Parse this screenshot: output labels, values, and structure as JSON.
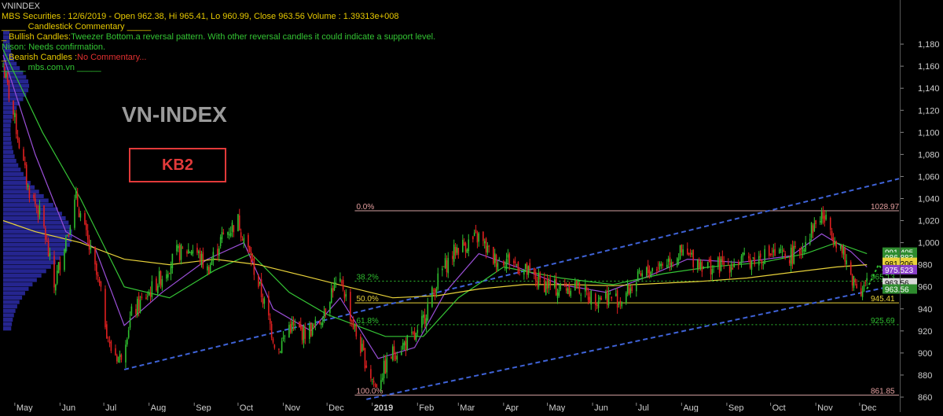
{
  "header": {
    "symbol": "VNINDEX",
    "ohlc_line": "MBS Securities :  12/6/2019 - Open 962.38, Hi 965.41, Lo 960.99, Close 963.56 Volume : 1.39313e+008",
    "commentary_title": "_____ Candlestick Commentary _____",
    "bullish_label": "_ Bullish Candles:",
    "bullish_text": "Tweezer Bottom.a reversal pattern. With other reversal candles it could indicate a support level.",
    "nison_text": "Nison: Needs confirmation.",
    "bearish_label": "_ Bearish Candles :",
    "bearish_text": "No Commentary...",
    "site_text": "_____ mbs.com.vn _____"
  },
  "overlay": {
    "index_name": "VN-INDEX",
    "badge": "KB2"
  },
  "colors": {
    "background": "#000000",
    "axis_text": "#cfcfcf",
    "bull": "#2fbf2f",
    "bear": "#e02020",
    "ma_green": "#35c435",
    "ma_purple": "#9b4fd8",
    "ma_yellow": "#e8d23a",
    "channel": "#3f63d8",
    "fib_line": "#d2a0a0",
    "header_yellow": "#e6c800",
    "header_green": "#33c433",
    "header_red": "#e03030",
    "volume_profile": "#2c2ca8"
  },
  "chart_data": {
    "type": "candlestick",
    "y_range": [
      855,
      1210
    ],
    "y_ticks": [
      860,
      880,
      900,
      920,
      940,
      960,
      980,
      1000,
      1020,
      1040,
      1060,
      1080,
      1100,
      1120,
      1140,
      1160,
      1180
    ],
    "y_tick_labels": [
      "860",
      "880",
      "900",
      "920",
      "940",
      "960",
      "980",
      "1,000",
      "1,020",
      "1,040",
      "1,060",
      "1,080",
      "1,100",
      "1,120",
      "1,140",
      "1,160",
      "1,180"
    ],
    "x_start": "2018-04-23",
    "x_end": "2019-12-28",
    "months": [
      {
        "label": "May",
        "date": "2018-05-01"
      },
      {
        "label": "Jun",
        "date": "2018-06-01"
      },
      {
        "label": "Jul",
        "date": "2018-07-01"
      },
      {
        "label": "Aug",
        "date": "2018-08-01"
      },
      {
        "label": "Sep",
        "date": "2018-09-01"
      },
      {
        "label": "Oct",
        "date": "2018-10-01"
      },
      {
        "label": "Nov",
        "date": "2018-11-01"
      },
      {
        "label": "Dec",
        "date": "2018-12-01"
      },
      {
        "label": "2019",
        "date": "2019-01-01"
      },
      {
        "label": "Feb",
        "date": "2019-02-01"
      },
      {
        "label": "Mar",
        "date": "2019-03-01"
      },
      {
        "label": "Apr",
        "date": "2019-04-01"
      },
      {
        "label": "May",
        "date": "2019-05-01"
      },
      {
        "label": "Jun",
        "date": "2019-06-01"
      },
      {
        "label": "Jul",
        "date": "2019-07-01"
      },
      {
        "label": "Aug",
        "date": "2019-08-01"
      },
      {
        "label": "Sep",
        "date": "2019-09-01"
      },
      {
        "label": "Oct",
        "date": "2019-10-01"
      },
      {
        "label": "Nov",
        "date": "2019-11-01"
      },
      {
        "label": "Dec",
        "date": "2019-12-01"
      }
    ],
    "close_path": [
      [
        "2018-04-23",
        1160
      ],
      [
        "2018-05-01",
        1110
      ],
      [
        "2018-05-10",
        1050
      ],
      [
        "2018-05-20",
        1020
      ],
      [
        "2018-05-28",
        960
      ],
      [
        "2018-06-04",
        1000
      ],
      [
        "2018-06-12",
        1040
      ],
      [
        "2018-06-20",
        1000
      ],
      [
        "2018-06-28",
        960
      ],
      [
        "2018-07-05",
        905
      ],
      [
        "2018-07-12",
        895
      ],
      [
        "2018-07-20",
        935
      ],
      [
        "2018-08-01",
        955
      ],
      [
        "2018-08-10",
        970
      ],
      [
        "2018-08-20",
        990
      ],
      [
        "2018-09-01",
        995
      ],
      [
        "2018-09-10",
        975
      ],
      [
        "2018-09-20",
        1005
      ],
      [
        "2018-10-01",
        1020
      ],
      [
        "2018-10-10",
        985
      ],
      [
        "2018-10-20",
        940
      ],
      [
        "2018-10-28",
        900
      ],
      [
        "2018-11-05",
        925
      ],
      [
        "2018-11-15",
        918
      ],
      [
        "2018-11-25",
        925
      ],
      [
        "2018-12-05",
        960
      ],
      [
        "2018-12-12",
        960
      ],
      [
        "2018-12-20",
        920
      ],
      [
        "2018-12-28",
        890
      ],
      [
        "2019-01-03",
        870
      ],
      [
        "2019-01-15",
        900
      ],
      [
        "2019-01-25",
        910
      ],
      [
        "2019-02-01",
        915
      ],
      [
        "2019-02-10",
        950
      ],
      [
        "2019-02-18",
        975
      ],
      [
        "2019-02-28",
        995
      ],
      [
        "2019-03-08",
        1000
      ],
      [
        "2019-03-15",
        1005
      ],
      [
        "2019-03-25",
        985
      ],
      [
        "2019-04-05",
        985
      ],
      [
        "2019-04-15",
        975
      ],
      [
        "2019-04-25",
        965
      ],
      [
        "2019-05-08",
        958
      ],
      [
        "2019-05-20",
        962
      ],
      [
        "2019-06-01",
        950
      ],
      [
        "2019-06-10",
        952
      ],
      [
        "2019-06-20",
        948
      ],
      [
        "2019-07-01",
        965
      ],
      [
        "2019-07-10",
        975
      ],
      [
        "2019-07-20",
        982
      ],
      [
        "2019-07-31",
        990
      ],
      [
        "2019-08-10",
        985
      ],
      [
        "2019-08-20",
        978
      ],
      [
        "2019-09-01",
        980
      ],
      [
        "2019-09-10",
        983
      ],
      [
        "2019-09-20",
        985
      ],
      [
        "2019-10-01",
        990
      ],
      [
        "2019-10-10",
        987
      ],
      [
        "2019-10-20",
        990
      ],
      [
        "2019-10-28",
        1010
      ],
      [
        "2019-11-05",
        1025
      ],
      [
        "2019-11-12",
        1010
      ],
      [
        "2019-11-18",
        995
      ],
      [
        "2019-11-25",
        970
      ],
      [
        "2019-12-02",
        958
      ],
      [
        "2019-12-06",
        963.56
      ]
    ],
    "ma_lines": [
      {
        "name": "ma_short",
        "color_key": "ma_purple",
        "points": [
          [
            "2018-04-23",
            1170
          ],
          [
            "2018-05-15",
            1080
          ],
          [
            "2018-06-05",
            1010
          ],
          [
            "2018-06-25",
            995
          ],
          [
            "2018-07-15",
            925
          ],
          [
            "2018-08-10",
            955
          ],
          [
            "2018-09-10",
            985
          ],
          [
            "2018-10-05",
            1000
          ],
          [
            "2018-10-25",
            940
          ],
          [
            "2018-11-20",
            920
          ],
          [
            "2018-12-10",
            950
          ],
          [
            "2019-01-05",
            895
          ],
          [
            "2019-01-30",
            905
          ],
          [
            "2019-02-20",
            955
          ],
          [
            "2019-03-15",
            990
          ],
          [
            "2019-04-10",
            978
          ],
          [
            "2019-05-10",
            962
          ],
          [
            "2019-06-10",
            955
          ],
          [
            "2019-07-10",
            970
          ],
          [
            "2019-08-05",
            985
          ],
          [
            "2019-09-10",
            982
          ],
          [
            "2019-10-15",
            988
          ],
          [
            "2019-11-05",
            1008
          ],
          [
            "2019-11-25",
            992
          ],
          [
            "2019-12-06",
            978
          ]
        ]
      },
      {
        "name": "ma_mid",
        "color_key": "ma_green",
        "points": [
          [
            "2018-04-23",
            1175
          ],
          [
            "2018-05-20",
            1100
          ],
          [
            "2018-06-15",
            1040
          ],
          [
            "2018-07-15",
            960
          ],
          [
            "2018-08-15",
            950
          ],
          [
            "2018-09-15",
            975
          ],
          [
            "2018-10-10",
            990
          ],
          [
            "2018-11-05",
            955
          ],
          [
            "2018-12-01",
            935
          ],
          [
            "2019-01-10",
            915
          ],
          [
            "2019-02-05",
            915
          ],
          [
            "2019-03-01",
            950
          ],
          [
            "2019-04-01",
            978
          ],
          [
            "2019-05-10",
            968
          ],
          [
            "2019-06-15",
            962
          ],
          [
            "2019-07-20",
            972
          ],
          [
            "2019-08-20",
            978
          ],
          [
            "2019-09-25",
            982
          ],
          [
            "2019-10-25",
            990
          ],
          [
            "2019-11-15",
            1000
          ],
          [
            "2019-12-06",
            990
          ]
        ]
      },
      {
        "name": "ma_slow",
        "color_key": "ma_yellow",
        "points": [
          [
            "2018-04-23",
            1020
          ],
          [
            "2018-05-15",
            1010
          ],
          [
            "2018-06-15",
            1000
          ],
          [
            "2018-07-15",
            985
          ],
          [
            "2018-08-15",
            980
          ],
          [
            "2018-09-15",
            985
          ],
          [
            "2018-10-15",
            980
          ],
          [
            "2018-11-15",
            970
          ],
          [
            "2018-12-15",
            960
          ],
          [
            "2019-01-15",
            950
          ],
          [
            "2019-02-15",
            952
          ],
          [
            "2019-03-15",
            958
          ],
          [
            "2019-04-15",
            962
          ],
          [
            "2019-05-15",
            962
          ],
          [
            "2019-06-15",
            961
          ],
          [
            "2019-07-15",
            963
          ],
          [
            "2019-08-15",
            965
          ],
          [
            "2019-09-15",
            968
          ],
          [
            "2019-10-15",
            973
          ],
          [
            "2019-11-15",
            978
          ],
          [
            "2019-12-06",
            980
          ]
        ]
      }
    ],
    "channel": {
      "upper": [
        [
          "2018-07-15",
          885
        ],
        [
          "2019-12-28",
          1058
        ]
      ],
      "lower": [
        [
          "2018-12-28",
          858
        ],
        [
          "2019-12-28",
          962
        ]
      ]
    },
    "fibonacci": [
      {
        "level": "0.0%",
        "value": 1028.97,
        "label": "1028.97"
      },
      {
        "level": "38.2%",
        "value": 965.13,
        "label": "965.13"
      },
      {
        "level": "50.0%",
        "value": 945.41,
        "label": "945.41"
      },
      {
        "level": "61.8%",
        "value": 925.69,
        "label": "925.69"
      },
      {
        "level": "100.0%",
        "value": 861.85,
        "label": "861.85"
      }
    ],
    "fib_start": "2018-12-20",
    "price_tags": [
      {
        "value": 991.405,
        "label": "991.405",
        "bg": "#2e8b2e",
        "fg": "#ffffff"
      },
      {
        "value": 986.883,
        "label": "986.883",
        "bg": "#2e8b2e",
        "fg": "#ffffff"
      },
      {
        "value": 982.185,
        "label": "982.185",
        "bg": "#e8d23a",
        "fg": "#000000"
      },
      {
        "value": 981.206,
        "label": "981.206",
        "bg": "#e8d23a",
        "fg": "#000000"
      },
      {
        "value": 975.523,
        "label": "975.523",
        "bg": "#8a3fc8",
        "fg": "#ffffff"
      },
      {
        "value": 963.56,
        "label": "963.56",
        "bg": "#d8d8d8",
        "fg": "#000000"
      },
      {
        "value": 958,
        "label": "963.56",
        "bg": "#2e8b2e",
        "fg": "#ffffff"
      }
    ],
    "forecast_arrow": [
      [
        "2019-12-06",
        958
      ],
      [
        "2019-12-14",
        980
      ],
      [
        "2019-12-20",
        970
      ],
      [
        "2019-12-28",
        990
      ]
    ],
    "volume_profile_range": [
      920,
      1190
    ]
  }
}
